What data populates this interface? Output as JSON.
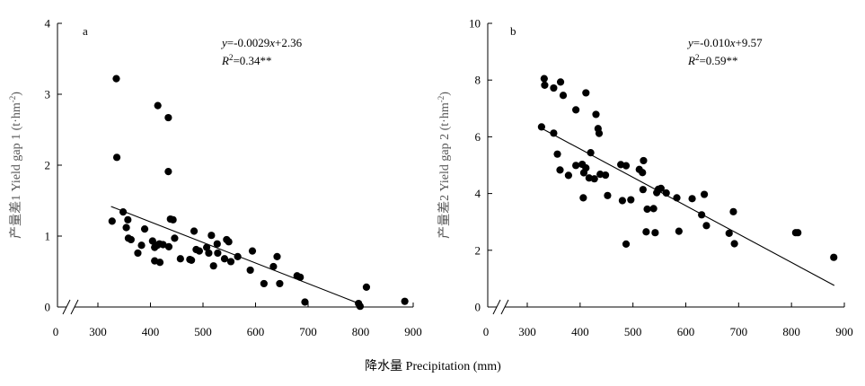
{
  "figure": {
    "xlabel": "降水量 Precipitation (mm)"
  },
  "chart_data": [
    {
      "type": "scatter",
      "panel": "a",
      "ylabel_cn": "产量差1",
      "ylabel_en": "Yield gap 1 (t·hm",
      "ylabel_unit_sup": "-2",
      "ylabel_close": ")",
      "equation": {
        "y": "y",
        "rhs_a": "=-0.0029",
        "x": "x",
        "rhs_b": "+2.36",
        "r": "R",
        "sup": "2",
        "r2_val": "=0.34**"
      },
      "xlim": [
        300,
        900
      ],
      "ylim": [
        0,
        4
      ],
      "x_origin_label": "0",
      "xticks": [
        300,
        400,
        500,
        600,
        700,
        800,
        900
      ],
      "yticks": [
        0,
        1,
        2,
        3,
        4
      ],
      "fit": {
        "slope": -0.0029,
        "intercept": 2.36,
        "x_start": 325,
        "x_end": 795
      },
      "points": [
        [
          335,
          3.22
        ],
        [
          336,
          2.11
        ],
        [
          414,
          2.84
        ],
        [
          434,
          2.67
        ],
        [
          434,
          1.91
        ],
        [
          327,
          1.21
        ],
        [
          348,
          1.34
        ],
        [
          357,
          1.23
        ],
        [
          358,
          0.97
        ],
        [
          363,
          0.95
        ],
        [
          354,
          1.12
        ],
        [
          376,
          0.76
        ],
        [
          383,
          0.87
        ],
        [
          389,
          1.1
        ],
        [
          404,
          0.93
        ],
        [
          408,
          0.84
        ],
        [
          413,
          0.87
        ],
        [
          417,
          0.89
        ],
        [
          424,
          0.88
        ],
        [
          435,
          0.85
        ],
        [
          438,
          1.24
        ],
        [
          443,
          1.23
        ],
        [
          446,
          0.97
        ],
        [
          408,
          0.65
        ],
        [
          418,
          0.63
        ],
        [
          457,
          0.68
        ],
        [
          475,
          0.67
        ],
        [
          478,
          0.66
        ],
        [
          483,
          1.07
        ],
        [
          487,
          0.81
        ],
        [
          493,
          0.79
        ],
        [
          507,
          0.84
        ],
        [
          511,
          0.76
        ],
        [
          516,
          1.01
        ],
        [
          520,
          0.58
        ],
        [
          527,
          0.89
        ],
        [
          528,
          0.76
        ],
        [
          541,
          0.68
        ],
        [
          545,
          0.95
        ],
        [
          549,
          0.92
        ],
        [
          553,
          0.64
        ],
        [
          566,
          0.71
        ],
        [
          590,
          0.52
        ],
        [
          594,
          0.79
        ],
        [
          616,
          0.33
        ],
        [
          634,
          0.57
        ],
        [
          641,
          0.71
        ],
        [
          646,
          0.33
        ],
        [
          679,
          0.44
        ],
        [
          685,
          0.42
        ],
        [
          694,
          0.07
        ],
        [
          796,
          0.05
        ],
        [
          799,
          0.01
        ],
        [
          811,
          0.28
        ],
        [
          884,
          0.08
        ]
      ]
    },
    {
      "type": "scatter",
      "panel": "b",
      "ylabel_cn": "产量差2",
      "ylabel_en": "Yield gap 2 (t·hm",
      "ylabel_unit_sup": "-2",
      "ylabel_close": ")",
      "equation": {
        "y": "y",
        "rhs_a": "=-0.010",
        "x": "x",
        "rhs_b": "+9.57",
        "r": "R",
        "sup": "2",
        "r2_val": "=0.59**"
      },
      "xlim": [
        300,
        900
      ],
      "ylim": [
        0,
        10
      ],
      "x_origin_label": "0",
      "xticks": [
        300,
        400,
        500,
        600,
        700,
        800,
        900
      ],
      "yticks": [
        0,
        2,
        4,
        6,
        8,
        10
      ],
      "fit": {
        "slope": -0.01,
        "intercept": 9.57,
        "x_start": 328,
        "x_end": 881
      },
      "points": [
        [
          332,
          8.05
        ],
        [
          333,
          7.82
        ],
        [
          350,
          7.72
        ],
        [
          363,
          7.93
        ],
        [
          368,
          7.46
        ],
        [
          327,
          6.35
        ],
        [
          350,
          6.13
        ],
        [
          357,
          5.39
        ],
        [
          362,
          4.83
        ],
        [
          378,
          4.64
        ],
        [
          392,
          4.99
        ],
        [
          392,
          6.95
        ],
        [
          404,
          5.03
        ],
        [
          406,
          3.85
        ],
        [
          407,
          4.73
        ],
        [
          411,
          7.55
        ],
        [
          411,
          4.9
        ],
        [
          417,
          4.55
        ],
        [
          420,
          5.44
        ],
        [
          427,
          4.52
        ],
        [
          430,
          6.79
        ],
        [
          434,
          6.29
        ],
        [
          436,
          6.12
        ],
        [
          438,
          4.68
        ],
        [
          448,
          4.65
        ],
        [
          452,
          3.93
        ],
        [
          477,
          5.02
        ],
        [
          480,
          3.75
        ],
        [
          487,
          4.98
        ],
        [
          487,
          2.22
        ],
        [
          496,
          3.78
        ],
        [
          512,
          4.85
        ],
        [
          518,
          4.74
        ],
        [
          520,
          5.16
        ],
        [
          519,
          4.14
        ],
        [
          525,
          2.65
        ],
        [
          527,
          3.45
        ],
        [
          539,
          3.47
        ],
        [
          542,
          2.62
        ],
        [
          545,
          4.03
        ],
        [
          548,
          4.15
        ],
        [
          553,
          4.18
        ],
        [
          563,
          4.02
        ],
        [
          583,
          3.85
        ],
        [
          587,
          2.67
        ],
        [
          612,
          3.82
        ],
        [
          630,
          3.25
        ],
        [
          635,
          3.97
        ],
        [
          639,
          2.87
        ],
        [
          682,
          2.6
        ],
        [
          690,
          3.36
        ],
        [
          692,
          2.23
        ],
        [
          808,
          2.62
        ],
        [
          812,
          2.62
        ],
        [
          880,
          1.75
        ]
      ]
    }
  ]
}
